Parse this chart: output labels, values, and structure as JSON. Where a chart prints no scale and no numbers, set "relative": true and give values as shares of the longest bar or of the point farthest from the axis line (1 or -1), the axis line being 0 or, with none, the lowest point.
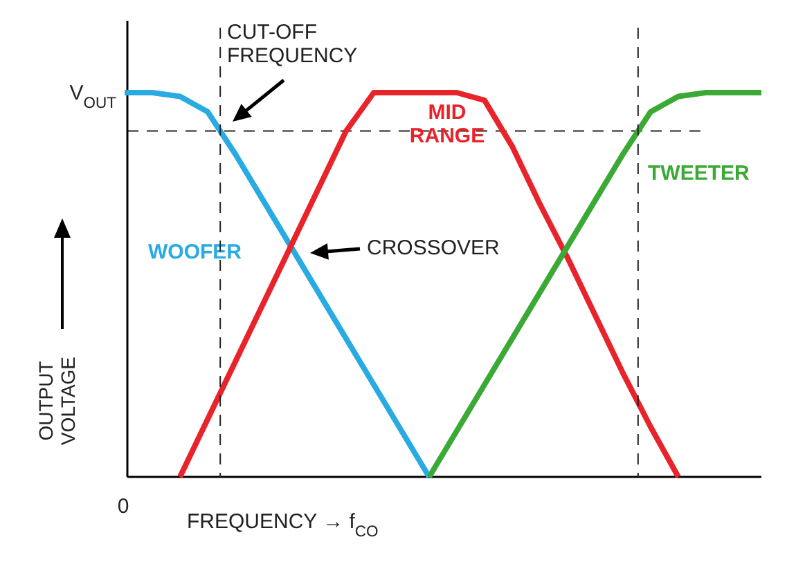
{
  "chart_data": {
    "type": "line",
    "relative": true,
    "xlabel": "FREQUENCY → f$_{CO}$",
    "ylabel": "OUTPUT VOLTAGE",
    "legend": false,
    "marker": "none",
    "line_style": "solid",
    "categories": [
      null,
      null,
      null,
      null,
      null,
      null,
      null,
      null,
      null,
      null,
      null,
      null,
      null,
      null,
      null,
      null,
      null,
      null,
      null,
      null,
      null,
      null,
      null,
      null
    ],
    "series": [
      {
        "name": "WOOFER",
        "color": "#29abe2",
        "values": [
          1,
          1,
          0.99,
          0.95,
          0.84,
          0.72,
          0.6,
          0.48,
          0.36,
          0.24,
          0.12,
          0,
          null,
          null,
          null,
          null,
          null,
          null,
          null,
          null,
          null,
          null,
          null,
          null
        ]
      },
      {
        "name": "MID RANGE",
        "color": "#e8232a",
        "values": [
          null,
          null,
          0,
          0.15,
          0.3,
          0.45,
          0.6,
          0.75,
          0.9,
          1,
          1,
          1,
          1,
          0.98,
          0.86,
          0.71,
          0.57,
          0.42,
          0.27,
          0.13,
          0,
          null,
          null,
          null
        ]
      },
      {
        "name": "TWEETER",
        "color": "#3aaa35",
        "values": [
          null,
          null,
          null,
          null,
          null,
          null,
          null,
          null,
          null,
          null,
          null,
          0,
          0.12,
          0.24,
          0.36,
          0.48,
          0.6,
          0.72,
          0.84,
          0.95,
          0.99,
          1,
          1,
          1
        ]
      }
    ],
    "ref_lines": [
      {
        "axis": "y",
        "value": 0.9,
        "line_style": "dashed",
        "color": "#222222"
      }
    ],
    "annotations": [
      "V$_{OUT}$",
      "0",
      "CUT-OFF FREQUENCY",
      "CROSSOVER"
    ]
  }
}
